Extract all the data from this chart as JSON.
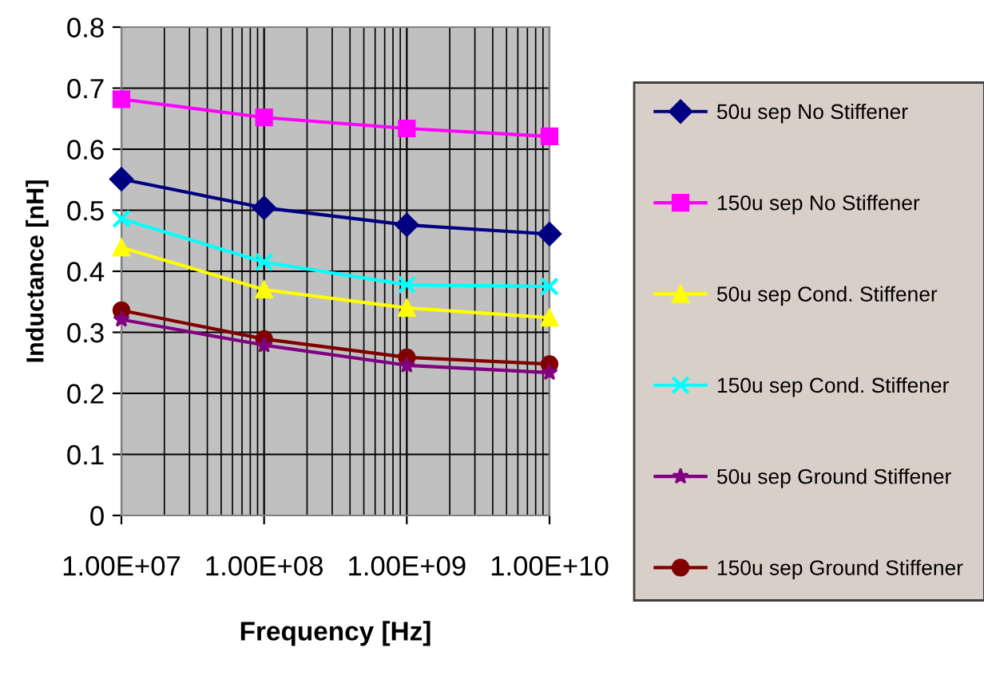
{
  "chart_data": {
    "type": "line",
    "xlabel": "Frequency [Hz]",
    "ylabel": "Inductance [nH]",
    "x": [
      10000000,
      100000000,
      1000000000,
      10000000000
    ],
    "log": "x",
    "xlim": [
      10000000,
      10000000000
    ],
    "xticks": [
      {
        "value": 10000000,
        "label": "1.00E+07"
      },
      {
        "value": 100000000,
        "label": "1.00E+08"
      },
      {
        "value": 1000000000,
        "label": "1.00E+09"
      },
      {
        "value": 10000000000,
        "label": "1.00E+10"
      }
    ],
    "ylim": [
      0,
      0.8
    ],
    "yticks": [
      0,
      0.1,
      0.2,
      0.3,
      0.4,
      0.5,
      0.6,
      0.7,
      0.8
    ],
    "grid": true,
    "legend": "right",
    "line_style": "solid",
    "series": [
      {
        "name": "50u sep No Stiffener",
        "color": "#000080",
        "marker": "diamond",
        "values": [
          0.551,
          0.504,
          0.476,
          0.461
        ]
      },
      {
        "name": "150u sep No Stiffener",
        "color": "#ff00ff",
        "marker": "square",
        "values": [
          0.682,
          0.652,
          0.634,
          0.621
        ]
      },
      {
        "name": "50u sep Cond. Stiffener",
        "color": "#ffff00",
        "marker": "triangle",
        "values": [
          0.439,
          0.37,
          0.34,
          0.324
        ]
      },
      {
        "name": "150u sep Cond. Stiffener",
        "color": "#00ffff",
        "marker": "cross",
        "values": [
          0.486,
          0.415,
          0.378,
          0.375
        ]
      },
      {
        "name": "50u sep Ground Stiffener",
        "color": "#800080",
        "marker": "star",
        "values": [
          0.321,
          0.279,
          0.246,
          0.234
        ]
      },
      {
        "name": "150u sep Ground Stiffener",
        "color": "#800000",
        "marker": "circle",
        "values": [
          0.336,
          0.289,
          0.259,
          0.248
        ]
      }
    ]
  }
}
